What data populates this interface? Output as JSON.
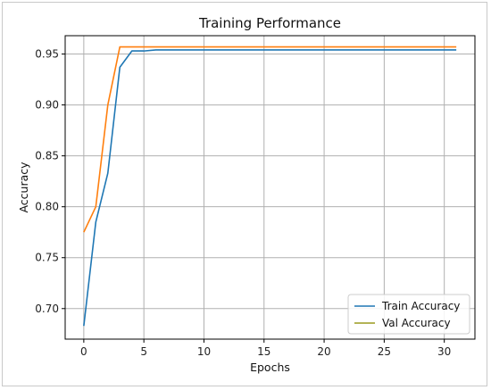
{
  "chart_data": {
    "type": "line",
    "title": "Training Performance",
    "xlabel": "Epochs",
    "ylabel": "Accuracy",
    "xlim": [
      -1.55,
      32.55
    ],
    "ylim": [
      0.67,
      0.968
    ],
    "xticks": [
      0,
      5,
      10,
      15,
      20,
      25,
      30
    ],
    "yticks": [
      0.7,
      0.75,
      0.8,
      0.85,
      0.9,
      0.95
    ],
    "xtick_labels": [
      "0",
      "5",
      "10",
      "15",
      "20",
      "25",
      "30"
    ],
    "ytick_labels": [
      "0.70",
      "0.75",
      "0.80",
      "0.85",
      "0.90",
      "0.95"
    ],
    "grid": true,
    "legend_position": "lower-right",
    "x": [
      0,
      1,
      2,
      3,
      4,
      5,
      6,
      7,
      8,
      9,
      10,
      11,
      12,
      13,
      14,
      15,
      16,
      17,
      18,
      19,
      20,
      21,
      22,
      23,
      24,
      25,
      26,
      27,
      28,
      29,
      30,
      31
    ],
    "series": [
      {
        "name": "Train Accuracy",
        "color": "#1f77b4",
        "values": [
          0.683,
          0.785,
          0.833,
          0.937,
          0.953,
          0.953,
          0.954,
          0.954,
          0.954,
          0.954,
          0.954,
          0.954,
          0.954,
          0.954,
          0.954,
          0.954,
          0.954,
          0.954,
          0.954,
          0.954,
          0.954,
          0.954,
          0.954,
          0.954,
          0.954,
          0.954,
          0.954,
          0.954,
          0.954,
          0.954,
          0.954,
          0.954
        ]
      },
      {
        "name": "Val Accuracy",
        "color": "#ff7f0e",
        "legend_color": "#9a9a1f",
        "values": [
          0.775,
          0.8,
          0.9,
          0.957,
          0.957,
          0.957,
          0.957,
          0.957,
          0.957,
          0.957,
          0.957,
          0.957,
          0.957,
          0.957,
          0.957,
          0.957,
          0.957,
          0.957,
          0.957,
          0.957,
          0.957,
          0.957,
          0.957,
          0.957,
          0.957,
          0.957,
          0.957,
          0.957,
          0.957,
          0.957,
          0.957,
          0.957
        ]
      }
    ]
  }
}
